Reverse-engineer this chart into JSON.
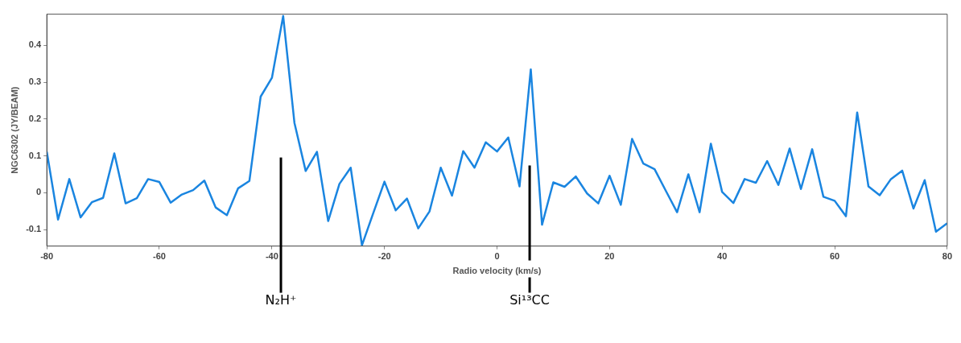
{
  "chart_data": {
    "type": "line",
    "xlabel": "Radio velocity (km/s)",
    "ylabel": "NGC6302 (JY/BEAM)",
    "x": [
      -80,
      -78,
      -76,
      -74,
      -72,
      -70,
      -68,
      -66,
      -64,
      -62,
      -60,
      -58,
      -56,
      -54,
      -52,
      -50,
      -48,
      -46,
      -44,
      -42,
      -40,
      -38,
      -36,
      -34,
      -32,
      -30,
      -28,
      -26,
      -24,
      -22,
      -20,
      -18,
      -16,
      -14,
      -12,
      -10,
      -8,
      -6,
      -4,
      -2,
      0,
      2,
      4,
      6,
      8,
      10,
      12,
      14,
      16,
      18,
      20,
      22,
      24,
      26,
      28,
      30,
      32,
      34,
      36,
      38,
      40,
      42,
      44,
      46,
      48,
      50,
      52,
      54,
      56,
      58,
      60,
      62,
      64,
      66,
      68,
      70,
      72,
      74,
      76,
      78,
      80
    ],
    "series": [
      {
        "color": "#1a85e0",
        "values": [
          0.111,
          -0.073,
          0.037,
          -0.067,
          -0.026,
          -0.014,
          0.107,
          -0.029,
          -0.015,
          0.037,
          0.029,
          -0.027,
          -0.005,
          0.007,
          0.033,
          -0.04,
          -0.061,
          0.012,
          0.032,
          0.261,
          0.312,
          0.48,
          0.19,
          0.059,
          0.111,
          -0.077,
          0.024,
          0.068,
          -0.143,
          -0.056,
          0.03,
          -0.048,
          -0.016,
          -0.097,
          -0.051,
          0.068,
          -0.008,
          0.113,
          0.068,
          0.137,
          0.112,
          0.15,
          0.017,
          0.335,
          -0.087,
          0.028,
          0.016,
          0.044,
          -0.002,
          -0.029,
          0.046,
          -0.033,
          0.146,
          0.079,
          0.064,
          0.005,
          -0.053,
          0.05,
          -0.053,
          0.133,
          0.002,
          -0.028,
          0.037,
          0.027,
          0.086,
          0.021,
          0.12,
          0.01,
          0.118,
          -0.011,
          -0.022,
          -0.064,
          0.218,
          0.017,
          -0.007,
          0.037,
          0.06,
          -0.043,
          0.034,
          -0.106,
          -0.083
        ]
      }
    ],
    "xlim": [
      -80,
      80
    ],
    "xticks": [
      -80,
      -60,
      -40,
      -20,
      0,
      20,
      40,
      60,
      80
    ],
    "ylim": [
      -0.145,
      0.485
    ],
    "yticks": [
      -0.1,
      0,
      0.1,
      0.2,
      0.3,
      0.4
    ],
    "grid": false,
    "legend": false,
    "marker": "none",
    "line_style": "solid",
    "ref_lines": [
      {
        "axis": "x",
        "value": -38.4,
        "label": "N₂H⁺",
        "color": "#000000"
      },
      {
        "axis": "x",
        "value": 5.8,
        "label": "Si¹³CC",
        "color": "#000000"
      }
    ]
  }
}
